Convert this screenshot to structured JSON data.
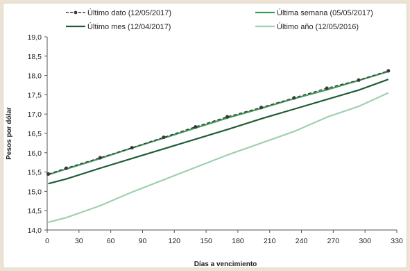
{
  "chart_data": {
    "type": "line",
    "xlabel": "Días a vencimiento",
    "ylabel": "Pesos por dólar",
    "xlim": [
      0,
      330
    ],
    "ylim": [
      14.0,
      19.0
    ],
    "x_ticks": [
      "0",
      "30",
      "60",
      "90",
      "120",
      "150",
      "180",
      "210",
      "240",
      "270",
      "300",
      "330"
    ],
    "y_ticks": [
      "14,0",
      "14,5",
      "15,0",
      "15,5",
      "16,0",
      "16,5",
      "17,0",
      "17,5",
      "18,0",
      "18,5",
      "19,0"
    ],
    "legend_position": "top",
    "grid": false,
    "series": [
      {
        "name": "Último dato (12/05/2017)",
        "color": "#3a3a3a",
        "style": "dashed-markers",
        "points": [
          [
            1,
            15.45
          ],
          [
            18,
            15.6
          ],
          [
            50,
            15.87
          ],
          [
            80,
            16.13
          ],
          [
            110,
            16.4
          ],
          [
            140,
            16.67
          ],
          [
            170,
            16.93
          ],
          [
            202,
            17.17
          ],
          [
            233,
            17.42
          ],
          [
            264,
            17.67
          ],
          [
            294,
            17.88
          ],
          [
            322,
            18.12
          ]
        ]
      },
      {
        "name": "Última semana (05/05/2017)",
        "color": "#3d9a57",
        "style": "solid",
        "points": [
          [
            1,
            15.43
          ],
          [
            18,
            15.58
          ],
          [
            50,
            15.85
          ],
          [
            80,
            16.12
          ],
          [
            110,
            16.38
          ],
          [
            140,
            16.64
          ],
          [
            170,
            16.9
          ],
          [
            202,
            17.15
          ],
          [
            233,
            17.4
          ],
          [
            264,
            17.63
          ],
          [
            294,
            17.87
          ],
          [
            322,
            18.1
          ]
        ]
      },
      {
        "name": "Último mes (12/04/2017)",
        "color": "#1f5c35",
        "style": "solid",
        "points": [
          [
            1,
            15.2
          ],
          [
            18,
            15.32
          ],
          [
            50,
            15.6
          ],
          [
            80,
            15.85
          ],
          [
            110,
            16.1
          ],
          [
            140,
            16.35
          ],
          [
            170,
            16.6
          ],
          [
            202,
            16.88
          ],
          [
            233,
            17.13
          ],
          [
            264,
            17.38
          ],
          [
            294,
            17.62
          ],
          [
            322,
            17.9
          ]
        ]
      },
      {
        "name": "Último año (12/05/2016)",
        "color": "#9fd0b0",
        "style": "solid",
        "points": [
          [
            1,
            14.2
          ],
          [
            18,
            14.32
          ],
          [
            50,
            14.63
          ],
          [
            80,
            14.98
          ],
          [
            110,
            15.3
          ],
          [
            140,
            15.62
          ],
          [
            170,
            15.94
          ],
          [
            202,
            16.25
          ],
          [
            233,
            16.55
          ],
          [
            264,
            16.92
          ],
          [
            294,
            17.2
          ],
          [
            322,
            17.55
          ]
        ]
      }
    ]
  }
}
